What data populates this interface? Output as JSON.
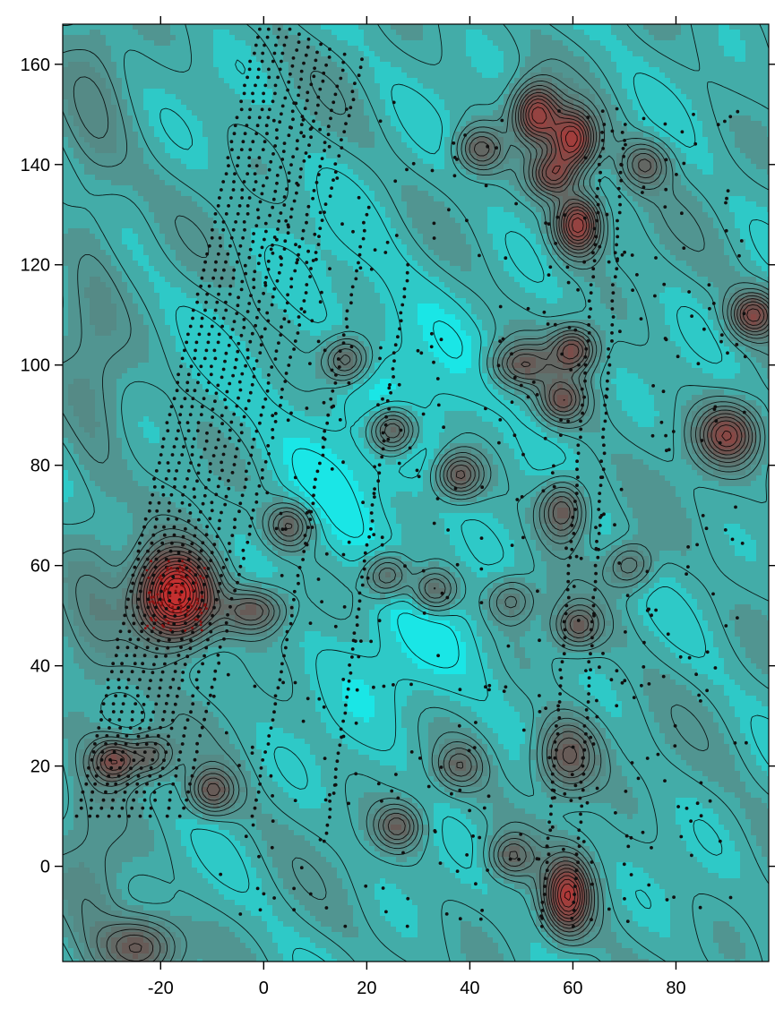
{
  "chart_data": {
    "type": "heatmap",
    "title": "",
    "xlabel": "",
    "ylabel": "",
    "xlim": [
      -39,
      98
    ],
    "ylim": [
      -19,
      168
    ],
    "x_ticks": [
      -20,
      0,
      20,
      40,
      60,
      80
    ],
    "y_ticks": [
      0,
      20,
      40,
      60,
      80,
      100,
      120,
      140,
      160
    ],
    "x_tick_labels": [
      "-20",
      "0",
      "20",
      "40",
      "60",
      "80"
    ],
    "y_tick_labels": [
      "0",
      "20",
      "40",
      "60",
      "80",
      "100",
      "120",
      "140",
      "160"
    ],
    "grid": false,
    "legend": "none",
    "colormap": {
      "low": "#12f2f2",
      "mid": "#4f9a96",
      "high": "#6a5450",
      "peak": "#c43030"
    },
    "contour_color": "#000000",
    "sample_point_color": "#101010",
    "background_value": 0.25,
    "anomalies": [
      {
        "x": -17,
        "y": 54,
        "amplitude": 1.35,
        "sx": 5,
        "sy": 6
      },
      {
        "x": -29,
        "y": 21,
        "amplitude": 0.6,
        "sx": 3,
        "sy": 3
      },
      {
        "x": -2,
        "y": 51,
        "amplitude": 0.5,
        "sx": 4,
        "sy": 3
      },
      {
        "x": -10,
        "y": 15,
        "amplitude": 0.5,
        "sx": 3,
        "sy": 3
      },
      {
        "x": -22,
        "y": 22,
        "amplitude": 0.4,
        "sx": 3,
        "sy": 3
      },
      {
        "x": 5,
        "y": 68,
        "amplitude": 0.45,
        "sx": 3,
        "sy": 3
      },
      {
        "x": 16,
        "y": 101,
        "amplitude": 0.45,
        "sx": 3,
        "sy": 3
      },
      {
        "x": 25,
        "y": 87,
        "amplitude": 0.55,
        "sx": 3,
        "sy": 3
      },
      {
        "x": 38,
        "y": 78,
        "amplitude": 0.55,
        "sx": 3,
        "sy": 3
      },
      {
        "x": 24,
        "y": 58,
        "amplitude": 0.45,
        "sx": 3,
        "sy": 3
      },
      {
        "x": 33,
        "y": 55,
        "amplitude": 0.45,
        "sx": 3,
        "sy": 3
      },
      {
        "x": 26,
        "y": 8,
        "amplitude": 0.45,
        "sx": 3,
        "sy": 3
      },
      {
        "x": 42,
        "y": 143,
        "amplitude": 0.45,
        "sx": 3,
        "sy": 3
      },
      {
        "x": 53,
        "y": 150,
        "amplitude": 0.85,
        "sx": 3,
        "sy": 4
      },
      {
        "x": 60,
        "y": 145,
        "amplitude": 0.9,
        "sx": 3,
        "sy": 4
      },
      {
        "x": 56,
        "y": 138,
        "amplitude": 0.65,
        "sx": 3,
        "sy": 3
      },
      {
        "x": 61,
        "y": 128,
        "amplitude": 0.9,
        "sx": 3,
        "sy": 4
      },
      {
        "x": 60,
        "y": 103,
        "amplitude": 0.6,
        "sx": 3,
        "sy": 3
      },
      {
        "x": 58,
        "y": 93,
        "amplitude": 0.5,
        "sx": 3,
        "sy": 3
      },
      {
        "x": 58,
        "y": 71,
        "amplitude": 0.55,
        "sx": 3,
        "sy": 4
      },
      {
        "x": 61,
        "y": 48,
        "amplitude": 0.45,
        "sx": 3,
        "sy": 3
      },
      {
        "x": 59,
        "y": 22,
        "amplitude": 0.55,
        "sx": 4,
        "sy": 5
      },
      {
        "x": 59,
        "y": -6,
        "amplitude": 0.9,
        "sx": 3,
        "sy": 5
      },
      {
        "x": 50,
        "y": 100,
        "amplitude": 0.45,
        "sx": 4,
        "sy": 3
      },
      {
        "x": 48,
        "y": 2,
        "amplitude": 0.4,
        "sx": 3,
        "sy": 3
      },
      {
        "x": 71,
        "y": 60,
        "amplitude": 0.35,
        "sx": 3,
        "sy": 3
      },
      {
        "x": 90,
        "y": 86,
        "amplitude": 0.7,
        "sx": 4,
        "sy": 4
      },
      {
        "x": 95,
        "y": 110,
        "amplitude": 0.65,
        "sx": 3,
        "sy": 3
      },
      {
        "x": 74,
        "y": 140,
        "amplitude": 0.4,
        "sx": 3,
        "sy": 3
      },
      {
        "x": -24,
        "y": -16,
        "amplitude": 0.5,
        "sx": 5,
        "sy": 4
      },
      {
        "x": 38,
        "y": 20,
        "amplitude": 0.35,
        "sx": 3,
        "sy": 3
      },
      {
        "x": 48,
        "y": 53,
        "amplitude": 0.3,
        "sx": 3,
        "sy": 3
      }
    ],
    "survey_lines": [
      {
        "start": [
          -36,
          10
        ],
        "end": [
          -1,
          167
        ]
      },
      {
        "start": [
          -34,
          10
        ],
        "end": [
          1,
          167
        ]
      },
      {
        "start": [
          -32,
          10
        ],
        "end": [
          3,
          167
        ]
      },
      {
        "start": [
          -30,
          10
        ],
        "end": [
          5,
          167
        ]
      },
      {
        "start": [
          -28,
          10
        ],
        "end": [
          7,
          166
        ]
      },
      {
        "start": [
          -26,
          10
        ],
        "end": [
          9,
          165
        ]
      },
      {
        "start": [
          -24,
          10
        ],
        "end": [
          11,
          164
        ]
      },
      {
        "start": [
          -22,
          10
        ],
        "end": [
          13,
          163
        ]
      },
      {
        "start": [
          -19,
          10
        ],
        "end": [
          16,
          162
        ]
      },
      {
        "start": [
          -16,
          10
        ],
        "end": [
          19,
          161
        ]
      },
      {
        "start": [
          -2,
          10
        ],
        "end": [
          20,
          130
        ]
      },
      {
        "start": [
          12,
          5
        ],
        "end": [
          28,
          120
        ]
      },
      {
        "start": [
          54,
          -12
        ],
        "end": [
          66,
          148
        ]
      },
      {
        "start": [
          60,
          -12
        ],
        "end": [
          70,
          148
        ]
      }
    ]
  }
}
